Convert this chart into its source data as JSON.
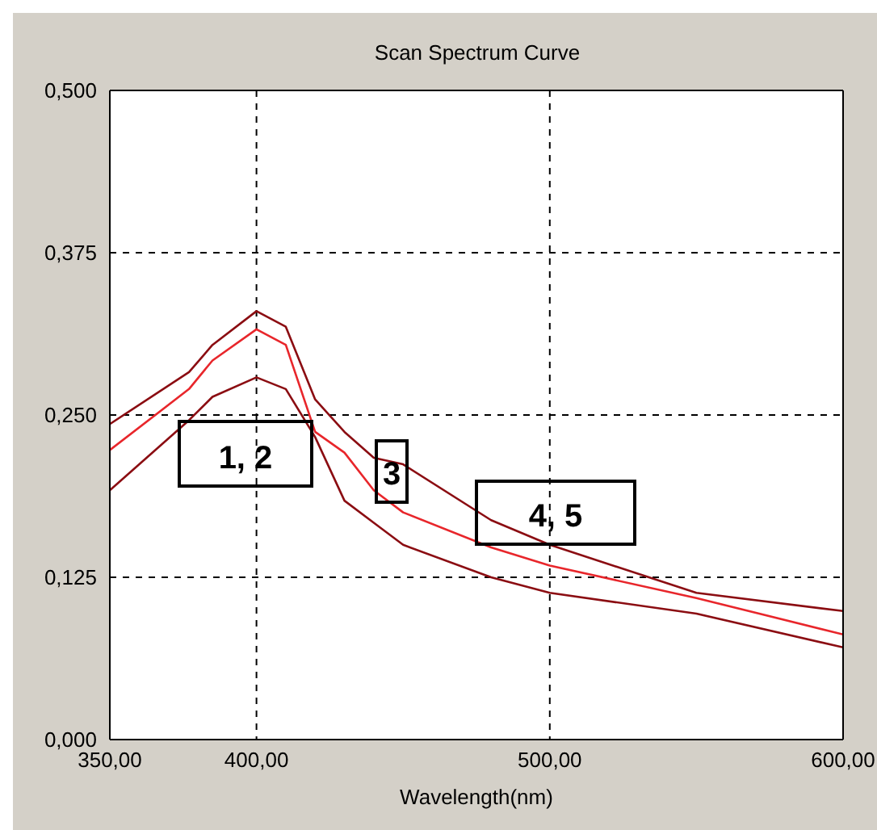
{
  "chart_data": {
    "type": "line",
    "title": "Scan Spectrum Curve",
    "xlabel": "Wavelength(nm)",
    "x": [
      350,
      377,
      385,
      400,
      410,
      420,
      430,
      440,
      450,
      480,
      500,
      550,
      600
    ],
    "series": [
      {
        "color": "#8b0d12",
        "values": [
          0.243,
          0.283,
          0.304,
          0.33,
          0.318,
          0.262,
          0.237,
          0.217,
          0.212,
          0.169,
          0.15,
          0.113,
          0.099
        ]
      },
      {
        "color": "#e8262b",
        "values": [
          0.223,
          0.27,
          0.292,
          0.316,
          0.304,
          0.237,
          0.221,
          0.192,
          0.175,
          0.148,
          0.134,
          0.109,
          0.081
        ]
      },
      {
        "color": "#8b0d12",
        "values": [
          0.192,
          0.246,
          0.264,
          0.279,
          0.27,
          0.233,
          0.184,
          0.167,
          0.15,
          0.125,
          0.113,
          0.097,
          0.071
        ]
      }
    ],
    "xlim": [
      350,
      600
    ],
    "ylim": [
      0,
      0.5
    ],
    "xticks": [
      {
        "value": 350,
        "label": "350,00"
      },
      {
        "value": 400,
        "label": "400,00"
      },
      {
        "value": 500,
        "label": "500,00"
      },
      {
        "value": 600,
        "label": "600,00"
      }
    ],
    "yticks": [
      {
        "value": 0,
        "label": "0,000"
      },
      {
        "value": 0.125,
        "label": "0,125"
      },
      {
        "value": 0.25,
        "label": "0,250"
      },
      {
        "value": 0.375,
        "label": "0,375"
      },
      {
        "value": 0.5,
        "label": "0,500"
      }
    ],
    "annotations": [
      "1, 2",
      "3",
      "4, 5"
    ],
    "grid": true,
    "line_style": "solid",
    "marker": "none"
  }
}
